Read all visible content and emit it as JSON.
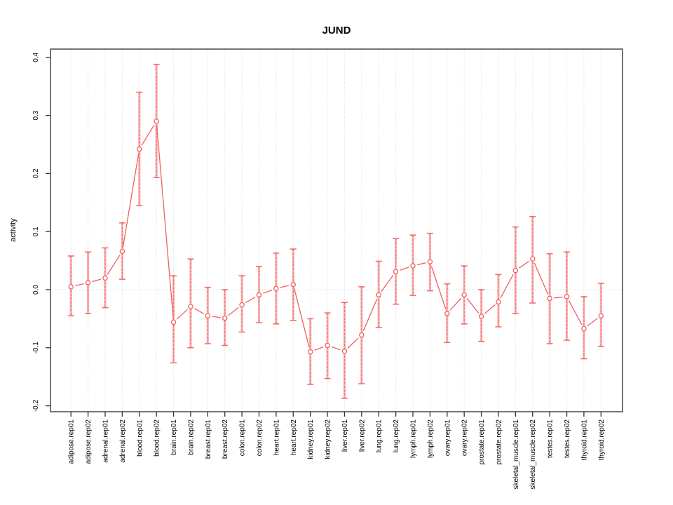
{
  "chart_data": {
    "type": "line",
    "title": "JUND",
    "xlabel": "",
    "ylabel": "activity",
    "ylim": [
      -0.2,
      0.4
    ],
    "yticks": [
      "0.4",
      "0.3",
      "0.2",
      "0.1",
      "0.0",
      "-0.1",
      "-0.2"
    ],
    "ytick_values": [
      0.4,
      0.3,
      0.2,
      0.1,
      0.0,
      -0.1,
      -0.2
    ],
    "grid": "vertical dotted gridline per category, dotted horizontal line at y=0, legend none",
    "categories": [
      "adipose.rep01",
      "adipose.rep02",
      "adrenal.rep01",
      "adrenal.rep02",
      "blood.rep01",
      "blood.rep02",
      "brain.rep01",
      "brain.rep02",
      "breast.rep01",
      "breast.rep02",
      "colon.rep01",
      "colon.rep02",
      "heart.rep01",
      "heart.rep02",
      "kidney.rep01",
      "kidney.rep02",
      "liver.rep01",
      "liver.rep02",
      "lung.rep01",
      "lung.rep02",
      "lymph.rep01",
      "lymph.rep02",
      "ovary.rep01",
      "ovary.rep02",
      "prostate.rep01",
      "prostate.rep02",
      "skeletal_muscle.rep01",
      "skeletal_muscle.rep02",
      "testes.rep01",
      "testes.rep02",
      "thyroid.rep01",
      "thyroid.rep02"
    ],
    "series": [
      {
        "name": "activity",
        "values": [
          0.005,
          0.012,
          0.02,
          0.066,
          0.242,
          0.29,
          -0.056,
          -0.029,
          -0.045,
          -0.049,
          -0.026,
          -0.009,
          0.002,
          0.009,
          -0.107,
          -0.096,
          -0.106,
          -0.078,
          -0.009,
          0.031,
          0.041,
          0.048,
          -0.041,
          -0.009,
          -0.046,
          -0.021,
          0.033,
          0.053,
          -0.015,
          -0.012,
          -0.067,
          -0.045
        ],
        "upper": [
          0.058,
          0.065,
          0.072,
          0.115,
          0.34,
          0.388,
          0.024,
          0.053,
          0.004,
          0.0,
          0.024,
          0.04,
          0.063,
          0.07,
          -0.05,
          -0.04,
          -0.022,
          0.005,
          0.049,
          0.088,
          0.094,
          0.097,
          0.01,
          0.041,
          0.0,
          0.026,
          0.108,
          0.126,
          0.062,
          0.065,
          -0.012,
          0.011
        ],
        "lower": [
          -0.045,
          -0.041,
          -0.031,
          0.018,
          0.145,
          0.193,
          -0.126,
          -0.1,
          -0.093,
          -0.096,
          -0.073,
          -0.057,
          -0.059,
          -0.053,
          -0.163,
          -0.153,
          -0.187,
          -0.162,
          -0.065,
          -0.025,
          -0.01,
          -0.002,
          -0.091,
          -0.059,
          -0.089,
          -0.064,
          -0.041,
          -0.023,
          -0.093,
          -0.087,
          -0.119,
          -0.098
        ]
      }
    ],
    "colors": {
      "point_line": "#f15f5f",
      "error_band": "#f8a6a6",
      "grid": "#d2d2d2",
      "frame": "#666666",
      "tick": "#333333",
      "text": "#000000",
      "background": "#ffffff"
    }
  }
}
